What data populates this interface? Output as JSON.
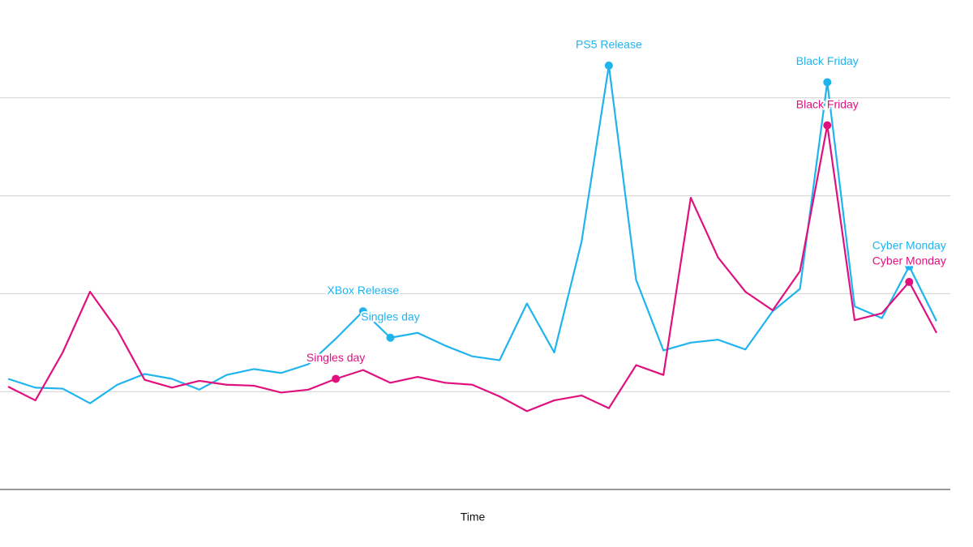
{
  "chart_data": {
    "type": "line",
    "x_label": "Time",
    "categories": [
      null,
      null,
      null,
      null,
      null,
      null,
      null,
      null,
      null,
      null,
      null,
      null,
      null,
      null,
      null,
      null,
      null,
      null,
      null,
      null,
      null,
      null,
      null,
      null,
      null,
      null,
      null,
      null,
      null,
      null,
      null,
      null,
      null,
      null,
      null
    ],
    "ylim": [
      0,
      5
    ],
    "yticks": [
      1,
      2,
      3,
      4
    ],
    "grid": true,
    "series": [
      {
        "color": "#1fb4ee",
        "values": [
          1.13,
          1.04,
          1.03,
          0.88,
          1.07,
          1.18,
          1.13,
          1.02,
          1.17,
          1.23,
          1.19,
          1.28,
          1.54,
          1.82,
          1.55,
          1.6,
          1.47,
          1.36,
          1.32,
          1.9,
          1.4,
          2.53,
          4.33,
          2.14,
          1.42,
          1.5,
          1.53,
          1.43,
          1.82,
          2.05,
          4.16,
          1.87,
          1.75,
          2.28,
          1.72
        ],
        "point_labels": [
          null,
          null,
          null,
          null,
          null,
          null,
          null,
          null,
          null,
          null,
          null,
          null,
          null,
          "XBox Release",
          "Singles day",
          null,
          null,
          null,
          null,
          null,
          null,
          null,
          "PS5 Release",
          null,
          null,
          null,
          null,
          null,
          null,
          null,
          "Black Friday",
          null,
          null,
          "Cyber Monday",
          null
        ]
      },
      {
        "color": "#e0117f",
        "values": [
          1.05,
          0.91,
          1.4,
          2.02,
          1.63,
          1.12,
          1.04,
          1.11,
          1.07,
          1.06,
          0.99,
          1.02,
          1.13,
          1.22,
          1.09,
          1.15,
          1.09,
          1.07,
          0.95,
          0.8,
          0.91,
          0.96,
          0.83,
          1.27,
          1.17,
          2.98,
          2.37,
          2.02,
          1.83,
          2.23,
          3.72,
          1.73,
          1.8,
          2.12,
          1.6
        ],
        "point_labels": [
          null,
          null,
          null,
          null,
          null,
          null,
          null,
          null,
          null,
          null,
          null,
          null,
          "Singles day",
          null,
          null,
          null,
          null,
          null,
          null,
          null,
          null,
          null,
          null,
          null,
          null,
          null,
          null,
          null,
          null,
          null,
          "Black Friday",
          null,
          null,
          "Cyber Monday",
          null
        ]
      }
    ]
  }
}
